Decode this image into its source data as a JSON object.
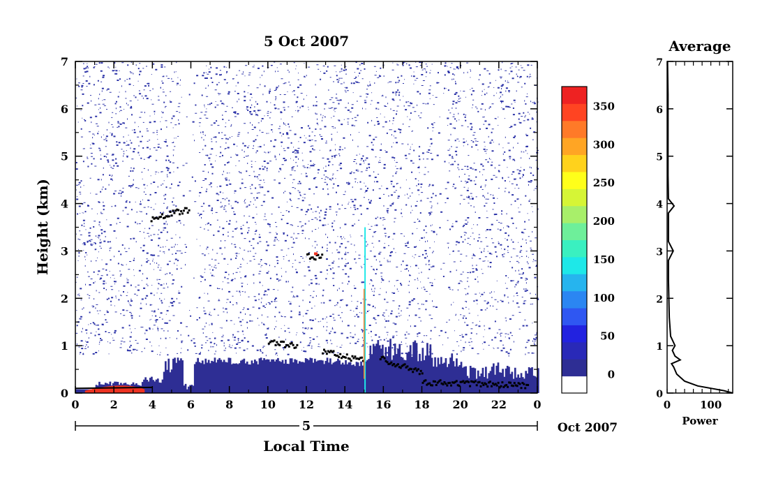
{
  "chart_data": [
    {
      "type": "heatmap",
      "title": "5 Oct 2007",
      "xlabel": "Local Time",
      "ylabel": "Height (km)",
      "xlim": [
        0,
        24
      ],
      "ylim": [
        0,
        7
      ],
      "x_ticks": [
        "0",
        "2",
        "4",
        "6",
        "8",
        "10",
        "12",
        "14",
        "16",
        "18",
        "20",
        "22",
        "0"
      ],
      "y_ticks": [
        "0",
        "1",
        "2",
        "3",
        "4",
        "5",
        "6",
        "7"
      ],
      "day_label": "5",
      "month_label": "Oct 2007",
      "colorbar": {
        "min": -25,
        "max": 375,
        "tick_labels": [
          "0",
          "50",
          "100",
          "150",
          "200",
          "250",
          "300",
          "350"
        ],
        "tick_values": [
          0,
          50,
          100,
          150,
          200,
          250,
          300,
          350
        ],
        "colors": [
          "#ffffff",
          "#2e2e94",
          "#2929b8",
          "#2222e0",
          "#2f57f2",
          "#2b86f2",
          "#26b4ee",
          "#1ee8e8",
          "#3af0c0",
          "#6eef9a",
          "#a8ef6a",
          "#d6f536",
          "#ffff1a",
          "#ffd21c",
          "#ffa524",
          "#ff7a28",
          "#ff4422",
          "#ee2222"
        ]
      },
      "features": [
        {
          "name": "surface-layer",
          "hours": [
            0,
            24
          ],
          "top_km": 0.75,
          "level": "0-50"
        },
        {
          "name": "layer-top-early",
          "hours": [
            3.9,
            5.9
          ],
          "height_km": 3.9
        },
        {
          "name": "layer-top-midday",
          "hours": [
            12.0,
            12.8
          ],
          "height_km": 2.9
        },
        {
          "name": "boundary-layer-top",
          "hours": [
            10,
            23.5
          ],
          "height_km": [
            1.1,
            0.9,
            0.8,
            0.7,
            0.3,
            0.2
          ]
        }
      ]
    },
    {
      "type": "line",
      "title": "Average",
      "xlabel": "Power",
      "ylabel": "",
      "xlim": [
        0,
        150
      ],
      "ylim": [
        0,
        7
      ],
      "x_ticks": [
        "0",
        "100"
      ],
      "y_ticks": [
        "0",
        "1",
        "2",
        "3",
        "4",
        "5",
        "6",
        "7"
      ],
      "series": [
        {
          "power": [
            150,
            130,
            100,
            70,
            40,
            22,
            15,
            10,
            30,
            18,
            12,
            18,
            8,
            5,
            3,
            3,
            14,
            3,
            3,
            3,
            16,
            3,
            2,
            2,
            2,
            2,
            1
          ],
          "height_km": [
            0.0,
            0.05,
            0.1,
            0.15,
            0.25,
            0.4,
            0.55,
            0.62,
            0.7,
            0.78,
            0.9,
            1.0,
            1.2,
            1.6,
            2.4,
            2.8,
            3.0,
            3.2,
            3.6,
            3.8,
            3.95,
            4.1,
            4.6,
            5.0,
            5.5,
            6.3,
            7.0
          ]
        }
      ]
    }
  ]
}
